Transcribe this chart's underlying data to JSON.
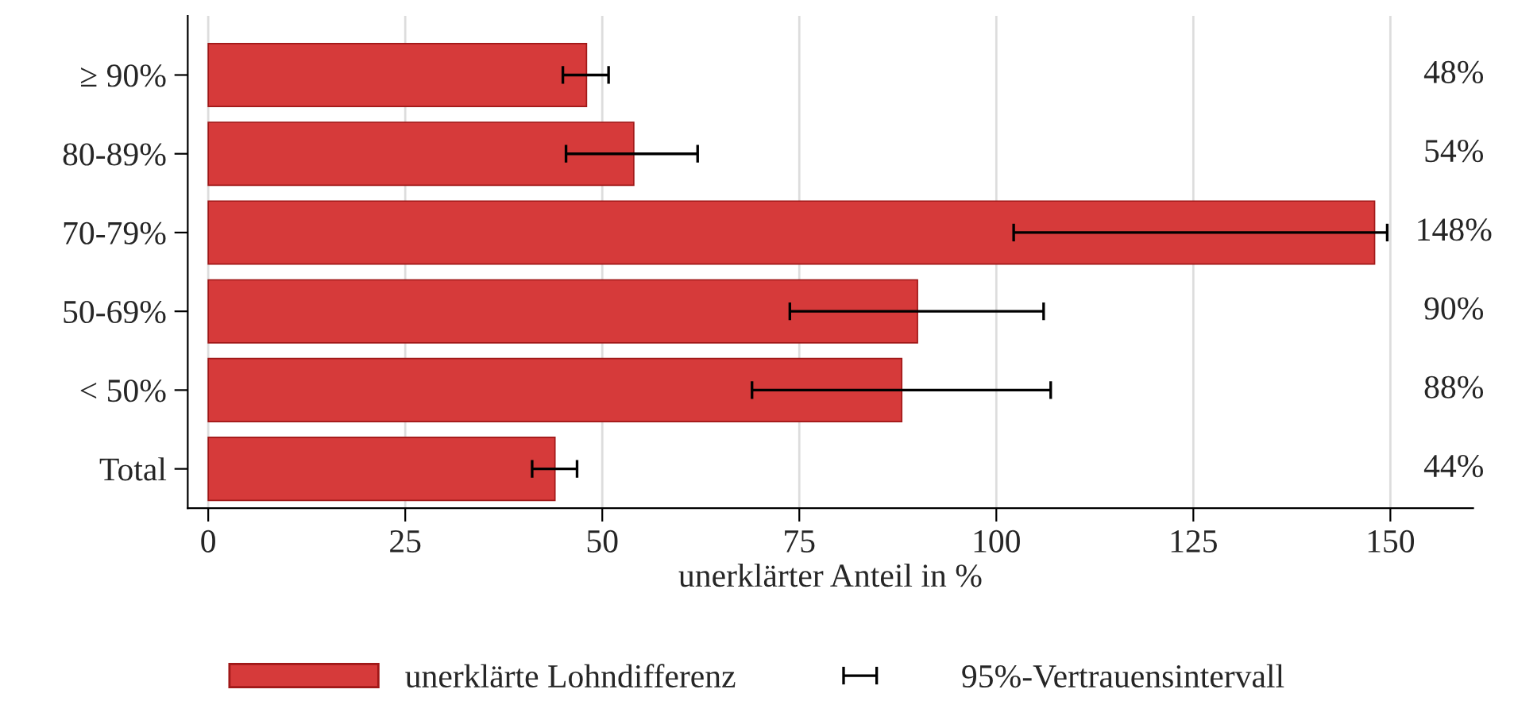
{
  "chart_data": {
    "type": "bar",
    "orientation": "horizontal",
    "xlabel": "unerklärter Anteil in %",
    "categories": [
      "≥ 90%",
      "80-89%",
      "70-79%",
      "50-69%",
      "< 50%",
      "Total"
    ],
    "series": [
      {
        "name": "unerklärte Lohndifferenz",
        "color": "#d63a3a",
        "values": [
          48,
          54,
          148,
          90,
          88,
          44
        ],
        "errors": [
          [
            45.0,
            50.8
          ],
          [
            45.4,
            62.1
          ],
          [
            102.2,
            149.6
          ],
          [
            73.8,
            106.0
          ],
          [
            69.0,
            106.9
          ],
          [
            41.1,
            46.8
          ]
        ],
        "value_labels": [
          "48%",
          "54%",
          "148%",
          "90%",
          "88%",
          "44%"
        ]
      }
    ],
    "annotations": [
      "95%-Vertrauensintervall"
    ],
    "xlim": [
      -2.6,
      160.5
    ],
    "xticks": [
      0,
      25,
      50,
      75,
      100,
      125,
      150
    ],
    "grid": "x",
    "legend": "bottom"
  }
}
